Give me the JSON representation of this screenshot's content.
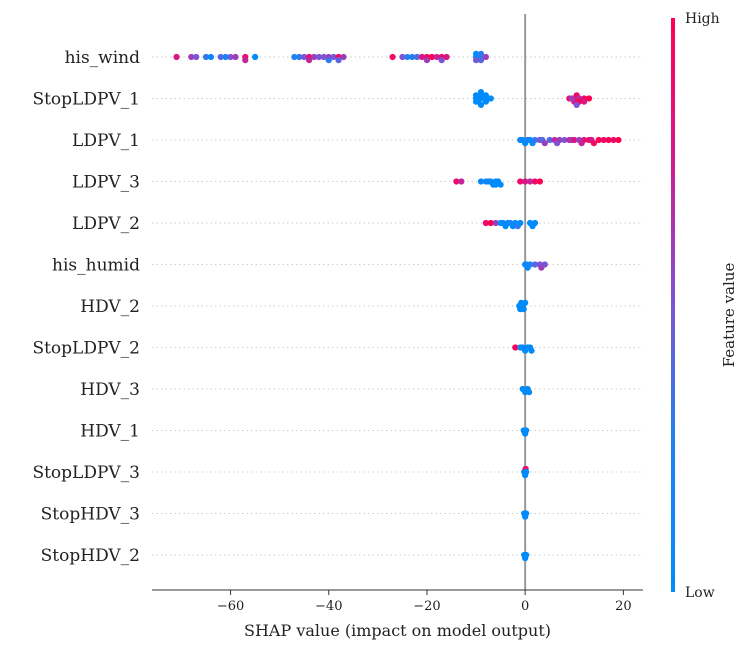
{
  "chart_data": {
    "type": "scatter",
    "subtype": "shap-beeswarm",
    "xlabel": "SHAP value (impact on model output)",
    "xlim": [
      -76,
      24
    ],
    "xticks": [
      -60,
      -40,
      -20,
      0,
      20
    ],
    "xtick_labels": [
      "−60",
      "−40",
      "−20",
      "0",
      "20"
    ],
    "colorbar": {
      "title": "Feature value",
      "high_label": "High",
      "low_label": "Low",
      "high_color": "#ff0052",
      "low_color": "#008bfb"
    },
    "features": [
      {
        "name": "his_wind",
        "points": [
          [
            -71,
            0.8
          ],
          [
            -68,
            0.6
          ],
          [
            -67,
            0.5
          ],
          [
            -65,
            0.3
          ],
          [
            -64,
            0.1
          ],
          [
            -62,
            0.4
          ],
          [
            -61,
            0.2
          ],
          [
            -60,
            0.5
          ],
          [
            -59,
            0.6
          ],
          [
            -57,
            0.9
          ],
          [
            -57,
            0.7
          ],
          [
            -55,
            0.0
          ],
          [
            -47,
            0.2
          ],
          [
            -46,
            0.3
          ],
          [
            -45,
            0.5
          ],
          [
            -44,
            0.9
          ],
          [
            -44,
            0.7
          ],
          [
            -43,
            0.6
          ],
          [
            -42,
            0.5
          ],
          [
            -41,
            0.5
          ],
          [
            -40,
            0.6
          ],
          [
            -40,
            0.3
          ],
          [
            -39,
            0.5
          ],
          [
            -38,
            0.9
          ],
          [
            -38,
            0.4
          ],
          [
            -37,
            0.6
          ],
          [
            -27,
            0.9
          ],
          [
            -25,
            0.5
          ],
          [
            -24,
            0.3
          ],
          [
            -23,
            0.2
          ],
          [
            -22,
            0.4
          ],
          [
            -21,
            0.8
          ],
          [
            -20,
            0.9
          ],
          [
            -20,
            0.6
          ],
          [
            -19,
            1.0
          ],
          [
            -18,
            0.7
          ],
          [
            -17,
            0.9
          ],
          [
            -17,
            0.5
          ],
          [
            -16,
            0.8
          ],
          [
            -10,
            0.2
          ],
          [
            -10,
            0.5
          ],
          [
            -10,
            0.0
          ],
          [
            -9,
            0.1
          ],
          [
            -9,
            0.4
          ],
          [
            -9,
            0.3
          ],
          [
            -8,
            0.6
          ]
        ]
      },
      {
        "name": "StopLDPV_1",
        "points": [
          [
            -10,
            0.0
          ],
          [
            -10,
            0.0
          ],
          [
            -10,
            0.0
          ],
          [
            -9.5,
            0.0
          ],
          [
            -9.5,
            0.0
          ],
          [
            -9,
            0.0
          ],
          [
            -9,
            0.0
          ],
          [
            -9,
            0.0
          ],
          [
            -8.5,
            0.0
          ],
          [
            -8,
            0.0
          ],
          [
            -8,
            0.0
          ],
          [
            -7.5,
            0.0
          ],
          [
            -7,
            0.0
          ],
          [
            9,
            0.9
          ],
          [
            10,
            1.0
          ],
          [
            10,
            0.8
          ],
          [
            10.5,
            0.9
          ],
          [
            11,
            0.7
          ],
          [
            11,
            1.0
          ],
          [
            12,
            0.9
          ],
          [
            12,
            0.8
          ],
          [
            13,
            1.0
          ],
          [
            9.5,
            0.6
          ],
          [
            10.5,
            0.5
          ]
        ]
      },
      {
        "name": "LDPV_1",
        "points": [
          [
            -1,
            0.0
          ],
          [
            -0.5,
            0.1
          ],
          [
            0,
            0.0
          ],
          [
            0.5,
            0.2
          ],
          [
            1,
            0.05
          ],
          [
            1.5,
            0.15
          ],
          [
            2,
            0.3
          ],
          [
            3,
            0.5
          ],
          [
            3.5,
            0.4
          ],
          [
            4,
            0.6
          ],
          [
            5,
            0.4
          ],
          [
            6,
            0.7
          ],
          [
            6.5,
            0.5
          ],
          [
            7,
            0.6
          ],
          [
            8,
            0.5
          ],
          [
            9,
            0.7
          ],
          [
            9.5,
            0.6
          ],
          [
            10,
            0.8
          ],
          [
            11,
            0.6
          ],
          [
            11.5,
            0.7
          ],
          [
            12,
            0.8
          ],
          [
            13,
            0.9
          ],
          [
            13.5,
            0.8
          ],
          [
            14,
            0.9
          ],
          [
            15,
            1.0
          ],
          [
            16,
            0.9
          ],
          [
            17,
            1.0
          ],
          [
            18,
            0.9
          ],
          [
            19,
            1.0
          ]
        ]
      },
      {
        "name": "LDPV_3",
        "points": [
          [
            -14,
            0.9
          ],
          [
            -13,
            0.7
          ],
          [
            -9,
            0.1
          ],
          [
            -8,
            0.2
          ],
          [
            -7.5,
            0.0
          ],
          [
            -7,
            0.1
          ],
          [
            -6.5,
            0.0
          ],
          [
            -6,
            0.0
          ],
          [
            -6,
            0.0
          ],
          [
            -5.5,
            0.0
          ],
          [
            -5,
            0.0
          ],
          [
            -1,
            0.9
          ],
          [
            0,
            0.8
          ],
          [
            1,
            0.7
          ],
          [
            2,
            0.9
          ],
          [
            3,
            1.0
          ]
        ]
      },
      {
        "name": "LDPV_2",
        "points": [
          [
            -8,
            0.9
          ],
          [
            -7,
            1.0
          ],
          [
            -6,
            0.6
          ],
          [
            -5,
            0.0
          ],
          [
            -4.5,
            0.1
          ],
          [
            -4,
            0.0
          ],
          [
            -3.5,
            0.0
          ],
          [
            -3,
            0.2
          ],
          [
            -2.5,
            0.0
          ],
          [
            -2,
            0.1
          ],
          [
            -1.5,
            0.3
          ],
          [
            -1,
            0.0
          ],
          [
            1,
            0.0
          ],
          [
            1.5,
            0.0
          ],
          [
            2,
            0.0
          ]
        ]
      },
      {
        "name": "his_humid",
        "points": [
          [
            0,
            0.0
          ],
          [
            0.3,
            0.1
          ],
          [
            0.5,
            0.0
          ],
          [
            1,
            0.2
          ],
          [
            2,
            0.4
          ],
          [
            3,
            0.5
          ],
          [
            3.3,
            0.6
          ],
          [
            4,
            0.5
          ]
        ]
      },
      {
        "name": "HDV_2",
        "points": [
          [
            -1.2,
            0.0
          ],
          [
            -1,
            0.0
          ],
          [
            -0.8,
            0.0
          ],
          [
            -0.5,
            0.0
          ],
          [
            -0.3,
            0.0
          ],
          [
            0,
            0.0
          ]
        ]
      },
      {
        "name": "StopLDPV_2",
        "points": [
          [
            -2,
            1.0
          ],
          [
            -1,
            0.2
          ],
          [
            -0.5,
            0.0
          ],
          [
            0,
            0.0
          ],
          [
            0.5,
            0.0
          ],
          [
            1,
            0.0
          ],
          [
            1.3,
            0.0
          ]
        ]
      },
      {
        "name": "HDV_3",
        "points": [
          [
            -0.5,
            0.0
          ],
          [
            0,
            0.0
          ],
          [
            0.5,
            0.0
          ],
          [
            0.8,
            0.0
          ]
        ]
      },
      {
        "name": "HDV_1",
        "points": [
          [
            -0.3,
            0.0
          ],
          [
            0,
            0.0
          ],
          [
            0.2,
            0.0
          ]
        ]
      },
      {
        "name": "StopLDPV_3",
        "points": [
          [
            -0.2,
            0.0
          ],
          [
            0,
            0.0
          ],
          [
            0.1,
            0.9
          ],
          [
            0.2,
            0.0
          ]
        ]
      },
      {
        "name": "StopHDV_3",
        "points": [
          [
            -0.2,
            0.0
          ],
          [
            0,
            0.0
          ],
          [
            0.2,
            0.0
          ]
        ]
      },
      {
        "name": "StopHDV_2",
        "points": [
          [
            -0.2,
            0.0
          ],
          [
            0,
            0.0
          ],
          [
            0.2,
            0.0
          ]
        ]
      }
    ]
  }
}
